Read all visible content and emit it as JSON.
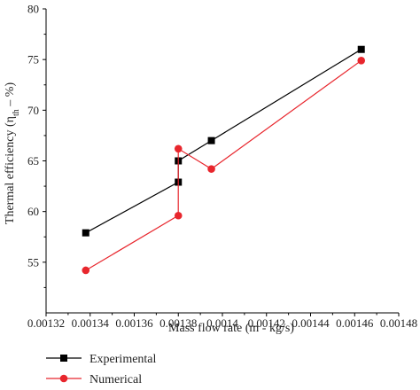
{
  "chart_data": {
    "type": "line",
    "title": "",
    "xlabel": "Mass flow rate (m - kg/s)",
    "ylabel_main": "Thermal efficiency (η",
    "ylabel_sub": "th",
    "ylabel_tail": " – %)",
    "xlim": [
      0.00132,
      0.00148
    ],
    "ylim": [
      50,
      80
    ],
    "x_ticks": [
      0.00132,
      0.00134,
      0.00136,
      0.00138,
      0.0014,
      0.00142,
      0.00144,
      0.00146,
      0.00148
    ],
    "x_tick_labels": [
      "0.00132",
      "0.00134",
      "0.00136",
      "0.00138",
      "0.0014",
      "0.00142",
      "0.00144",
      "0.00146",
      "0.00148"
    ],
    "y_ticks": [
      55,
      60,
      65,
      70,
      75,
      80
    ],
    "y_tick_labels": [
      "55",
      "60",
      "65",
      "70",
      "75",
      "80"
    ],
    "grid": false,
    "legend_position": "bottom-left",
    "series": [
      {
        "name": "Experimental",
        "color": "#000000",
        "marker": "square",
        "x": [
          0.001338,
          0.00138,
          0.00138,
          0.001395,
          0.001463
        ],
        "y": [
          57.9,
          62.9,
          65.0,
          67.0,
          76.0
        ]
      },
      {
        "name": "Numerical",
        "color": "#e8262d",
        "marker": "circle",
        "x": [
          0.001338,
          0.00138,
          0.00138,
          0.001395,
          0.001463
        ],
        "y": [
          54.2,
          59.6,
          66.2,
          64.2,
          74.9
        ]
      }
    ]
  }
}
